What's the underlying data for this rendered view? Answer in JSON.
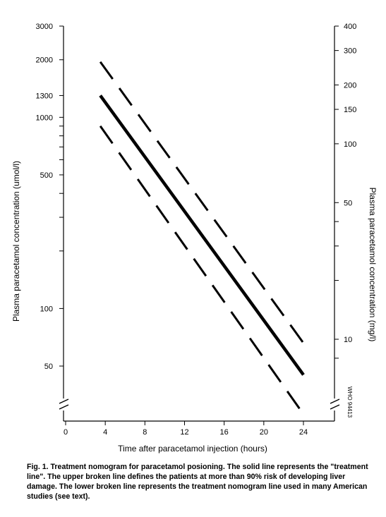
{
  "chart_data": {
    "type": "line",
    "title": "",
    "xlabel": "Time after paracetamol injection (hours)",
    "ylabel_left": "Plasma paracetamol  concentration (umol/l)",
    "ylabel_right": "Plasma paracetamol  concentration  (mg/l)",
    "scale_y": "log",
    "xlim": [
      0,
      24
    ],
    "x_ticks": [
      0,
      4,
      8,
      12,
      16,
      20,
      24
    ],
    "ylim_left": [
      30,
      3000
    ],
    "y_left_ticks_labeled": [
      50,
      100,
      500,
      1000,
      1300,
      2000,
      3000
    ],
    "y_left_ticks_minor": [
      200,
      300,
      400,
      600,
      700,
      800,
      900
    ],
    "ylim_right": [
      5,
      400
    ],
    "y_right_ticks_labeled": [
      10,
      50,
      100,
      150,
      200,
      300,
      400
    ],
    "y_right_ticks_minor": [
      8,
      20,
      30,
      40
    ],
    "series": [
      {
        "style": "dashed",
        "x": [
          3.5,
          24
        ],
        "y": [
          1950,
          66
        ]
      },
      {
        "style": "solid",
        "x": [
          3.5,
          24
        ],
        "y": [
          1300,
          45
        ]
      },
      {
        "style": "dashed",
        "x": [
          3.5,
          24
        ],
        "y": [
          900,
          28
        ]
      }
    ],
    "annotation": "WHO 94413",
    "grid": false
  },
  "caption": "Fig. 1.  Treatment nomogram for paracetamol posioning.  The solid line represents the \"treatment line\".  The upper broken line defines the patients at more than 90% risk of developing liver damage.  The lower broken line represents the treatment nomogram line used in many American studies (see text)."
}
